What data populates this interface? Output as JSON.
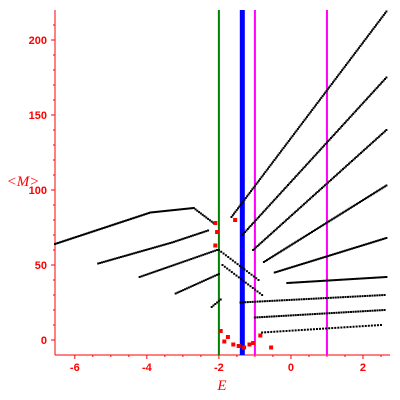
{
  "chart_data": {
    "type": "scatter",
    "xlabel": "E",
    "ylabel": "<M>",
    "xlim": [
      -6.55,
      2.75
    ],
    "ylim": [
      -10,
      220
    ],
    "xticks": [
      -6,
      -4,
      -2,
      0,
      2
    ],
    "xtick_labels": [
      "-6",
      "-4",
      "-2",
      "0",
      "2"
    ],
    "yticks": [
      0,
      50,
      100,
      150,
      200
    ],
    "ytick_labels": [
      "0",
      "50",
      "100",
      "150",
      "200"
    ],
    "grid": false,
    "legend": "none",
    "colors": {
      "axes": "#ff0000",
      "points": "#000000",
      "highlight": "#ff0000"
    },
    "vlines": [
      {
        "x": -2.0,
        "color": "#008000",
        "width": "thin"
      },
      {
        "x": -1.35,
        "color": "#0000ff",
        "width": "thick"
      },
      {
        "x": -1.0,
        "color": "#ff00ff",
        "width": "thin"
      },
      {
        "x": 1.0,
        "color": "#ff00ff",
        "width": "thin"
      }
    ],
    "series": [
      {
        "x_from": -6.55,
        "x_to": -3.9,
        "y_from": 64,
        "y_to": 85,
        "count": 60
      },
      {
        "x_from": -3.9,
        "x_to": -2.7,
        "y_from": 85,
        "y_to": 88,
        "count": 26
      },
      {
        "x_from": -2.7,
        "x_to": -2.15,
        "y_from": 88,
        "y_to": 78,
        "count": 12
      },
      {
        "x_from": -5.35,
        "x_to": -3.3,
        "y_from": 51,
        "y_to": 65,
        "count": 40
      },
      {
        "x_from": -3.3,
        "x_to": -2.3,
        "y_from": 65,
        "y_to": 73,
        "count": 20
      },
      {
        "x_from": -4.2,
        "x_to": -2.05,
        "y_from": 42,
        "y_to": 60,
        "count": 40
      },
      {
        "x_from": -3.2,
        "x_to": -2.0,
        "y_from": 31,
        "y_to": 44,
        "count": 24
      },
      {
        "x_from": -2.2,
        "x_to": -1.95,
        "y_from": 22,
        "y_to": 27,
        "count": 6
      },
      {
        "x_from": -1.65,
        "x_to": 2.65,
        "y_from": 82,
        "y_to": 219,
        "count": 120
      },
      {
        "x_from": -1.35,
        "x_to": 2.65,
        "y_from": 70,
        "y_to": 175,
        "count": 105
      },
      {
        "x_from": -1.05,
        "x_to": 2.65,
        "y_from": 60,
        "y_to": 140,
        "count": 90
      },
      {
        "x_from": -0.75,
        "x_to": 2.65,
        "y_from": 52,
        "y_to": 103,
        "count": 80
      },
      {
        "x_from": -0.45,
        "x_to": 2.65,
        "y_from": 45,
        "y_to": 68,
        "count": 66
      },
      {
        "x_from": -0.1,
        "x_to": 2.65,
        "y_from": 38,
        "y_to": 42,
        "count": 55
      },
      {
        "x_from": -2.0,
        "x_to": -0.9,
        "y_from": 60,
        "y_to": 40,
        "count": 18
      },
      {
        "x_from": -1.9,
        "x_to": -0.8,
        "y_from": 50,
        "y_to": 30,
        "count": 18
      },
      {
        "x_from": -1.4,
        "x_to": 2.6,
        "y_from": 25,
        "y_to": 30,
        "count": 60
      },
      {
        "x_from": -1.0,
        "x_to": 2.6,
        "y_from": 15,
        "y_to": 20,
        "count": 55
      },
      {
        "x_from": -0.8,
        "x_to": 2.5,
        "y_from": 5,
        "y_to": 10,
        "count": 40
      }
    ],
    "red_points": [
      {
        "x": -2.1,
        "y": 78
      },
      {
        "x": -1.55,
        "y": 80
      },
      {
        "x": -2.05,
        "y": 72
      },
      {
        "x": -2.1,
        "y": 63
      },
      {
        "x": -1.95,
        "y": 6
      },
      {
        "x": -1.85,
        "y": -1
      },
      {
        "x": -1.75,
        "y": 2
      },
      {
        "x": -1.6,
        "y": -3
      },
      {
        "x": -1.45,
        "y": -4
      },
      {
        "x": -1.3,
        "y": -5
      },
      {
        "x": -1.15,
        "y": -3
      },
      {
        "x": -1.05,
        "y": -2
      },
      {
        "x": -0.85,
        "y": 3
      },
      {
        "x": -0.55,
        "y": -5
      }
    ]
  }
}
